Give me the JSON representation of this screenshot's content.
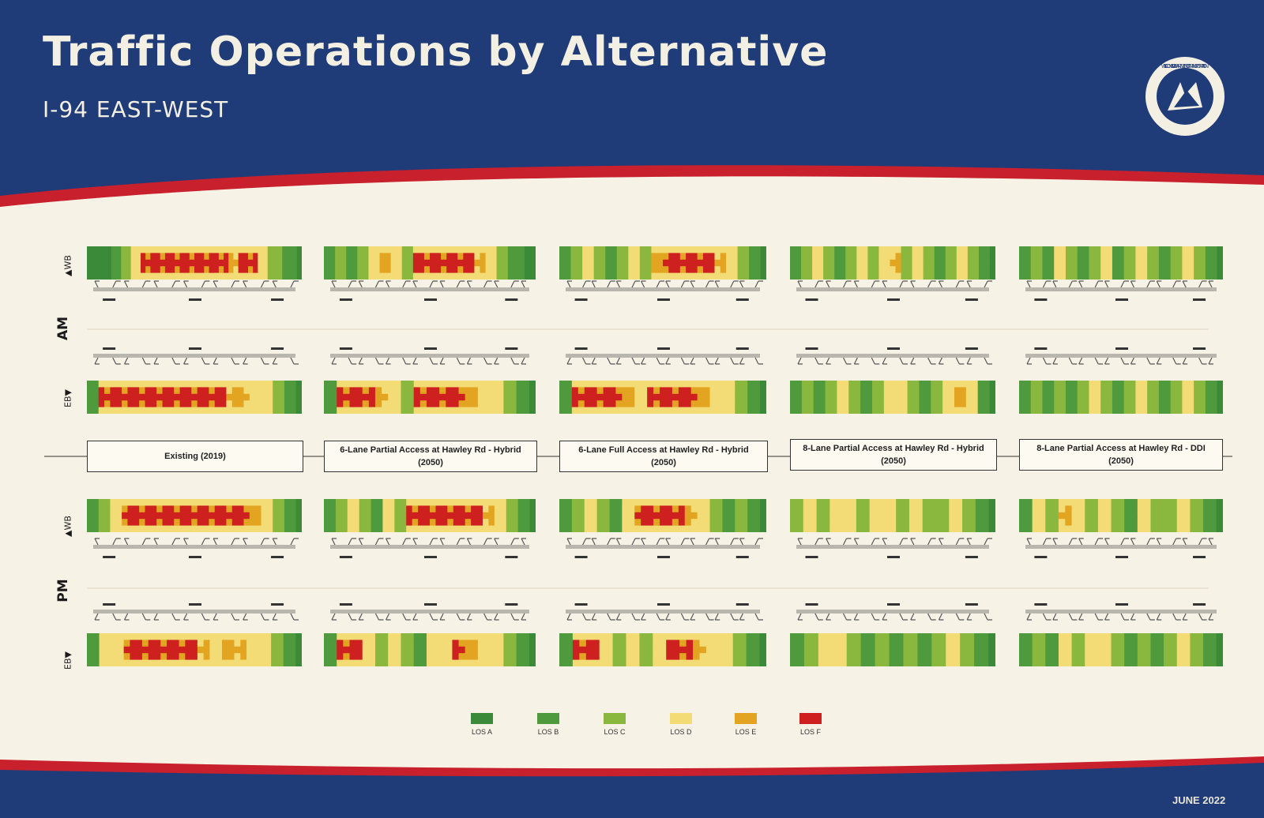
{
  "header": {
    "title": "Traffic Operations by Alternative",
    "subtitle": "I-94 EAST-WEST",
    "logo": "wisconsin-dot-seal-icon",
    "logo_text": "WISCONSIN DEPARTMENT OF TRANSPORTATION"
  },
  "footer": {
    "date": "JUNE 2022"
  },
  "periods": [
    "AM",
    "PM"
  ],
  "directions": {
    "wb": "WB",
    "eb": "EB"
  },
  "alternatives": [
    "Existing (2019)",
    "6-Lane Partial Access at Hawley Rd - Hybrid (2050)",
    "6-Lane Full Access at Hawley Rd - Hybrid (2050)",
    "8-Lane Partial Access at Hawley Rd - Hybrid (2050)",
    "8-Lane Partial Access at Hawley Rd - DDI (2050)"
  ],
  "legend": [
    {
      "label": "LOS A",
      "color": "#3a8a3a"
    },
    {
      "label": "LOS B",
      "color": "#4f9a3c"
    },
    {
      "label": "LOS C",
      "color": "#8ab83e"
    },
    {
      "label": "LOS D",
      "color": "#f3dc76"
    },
    {
      "label": "LOS E",
      "color": "#e3a521"
    },
    {
      "label": "LOS F",
      "color": "#cf2020"
    }
  ],
  "colors": {
    "navy": "#1f3c78",
    "red_stripe": "#c8202c",
    "cream": "#f7f2e6"
  },
  "heatmaps": [
    {
      "period": "AM",
      "direction": "WB",
      "alternative": 0,
      "pattern": "AAAAABBCCDDFFFFFFFFFFFFFFFFFFEEFFFFDDCCCBBBA"
    },
    {
      "period": "AM",
      "direction": "WB",
      "alternative": 1,
      "pattern": "BBCCBBCCDDEEDDCCFFFFFFFFFFFEEDDCCBBBAA"
    },
    {
      "period": "AM",
      "direction": "WB",
      "alternative": 2,
      "pattern": "BBCCDDCCBBCCDDCCEEFFFFFFFFFEEDDCCBBA"
    },
    {
      "period": "AM",
      "direction": "WB",
      "alternative": 3,
      "pattern": "BBCCDDCCBBCCDDCCDDEECCDDCCBBCCDDCCBBA"
    },
    {
      "period": "AM",
      "direction": "WB",
      "alternative": 4,
      "pattern": "BBCCBBDDCCBBCCDDBBCCDDCCBBCCDDCCBBA"
    },
    {
      "period": "AM",
      "direction": "EB",
      "alternative": 0,
      "pattern": "BBFFFFFFFFFFFFFFFFFFFFFFEEEEDDDDCCBBA"
    },
    {
      "period": "AM",
      "direction": "EB",
      "alternative": 1,
      "pattern": "BBFFFFFFEEDDCCFFFFFFFFEEDDDDCCBBA"
    },
    {
      "period": "AM",
      "direction": "EB",
      "alternative": 2,
      "pattern": "BBFFFFFFFFEEDDFFFFFFFFEEDDDDCCBBA"
    },
    {
      "period": "AM",
      "direction": "EB",
      "alternative": 3,
      "pattern": "BBCCBBCCDDCCBBCCDDDDCCBBCCDDEEDDBBA"
    },
    {
      "period": "AM",
      "direction": "EB",
      "alternative": 4,
      "pattern": "BBCCBBCCBBCCDDCCBBCCDDCCBBCCDDCCBBA"
    },
    {
      "period": "PM",
      "direction": "WB",
      "alternative": 0,
      "pattern": "BBCCDDFFFFFFFFFFFFFFFFFFFFFFEEDDCCBBA"
    },
    {
      "period": "PM",
      "direction": "WB",
      "alternative": 1,
      "pattern": "BBCCDDCCBBDDCCFFFFFFFFFFFFFEEDDCCBBA"
    },
    {
      "period": "PM",
      "direction": "WB",
      "alternative": 2,
      "pattern": "BBCCDDCCBBDDFFFFFFFFEEDDCCBBCCBBA"
    },
    {
      "period": "PM",
      "direction": "WB",
      "alternative": 3,
      "pattern": "CCDDCCDDDDCCDDDDCCDDCCCCDDCCBBA"
    },
    {
      "period": "PM",
      "direction": "WB",
      "alternative": 4,
      "pattern": "BBDDCCEEDDCCDDCCBBDDCCCCDDCCBBA"
    },
    {
      "period": "PM",
      "direction": "EB",
      "alternative": 0,
      "pattern": "BBDDDDFFFFFFFFFFFFEEDDEEEEDDDDCCBBA"
    },
    {
      "period": "PM",
      "direction": "EB",
      "alternative": 1,
      "pattern": "BBFFFFDDCCDDCCBBDDDDFFEEDDDDCCBBA"
    },
    {
      "period": "PM",
      "direction": "EB",
      "alternative": 2,
      "pattern": "BBFFFFDDCCDDCCDDFFFFEEDDDDCCBBA"
    },
    {
      "period": "PM",
      "direction": "EB",
      "alternative": 3,
      "pattern": "BBCCDDDDCCBBCCBBCCBBCCDDCCBBA"
    },
    {
      "period": "PM",
      "direction": "EB",
      "alternative": 4,
      "pattern": "BBCCBBDDCCDDDDCCBBCCBBCCDDCCBBA"
    }
  ]
}
